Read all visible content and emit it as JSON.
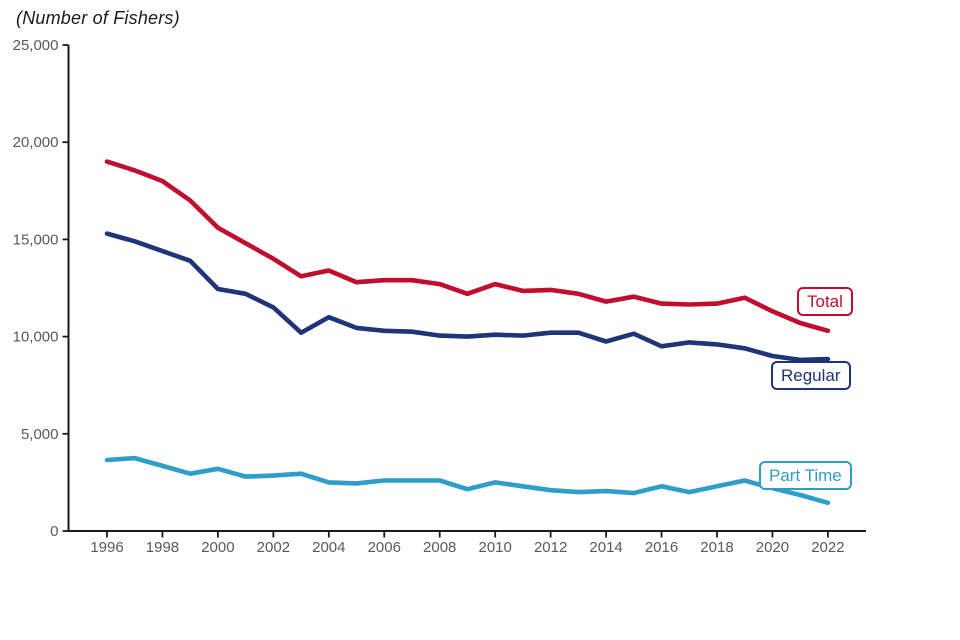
{
  "chart_data": {
    "type": "line",
    "title": "(Number of Fishers)",
    "xlabel": "",
    "ylabel": "(Number of Fishers)",
    "ylim": [
      0,
      25000
    ],
    "grid": false,
    "legend": "inline-end-labels",
    "axis_color": "#1a1a1a",
    "tick_label_color": "#595959",
    "x": [
      1996,
      1997,
      1998,
      1999,
      2000,
      2001,
      2002,
      2003,
      2004,
      2005,
      2006,
      2007,
      2008,
      2009,
      2010,
      2011,
      2012,
      2013,
      2014,
      2015,
      2016,
      2017,
      2018,
      2019,
      2020,
      2021,
      2022
    ],
    "y_ticks": [
      {
        "value": 0,
        "label": "0"
      },
      {
        "value": 5000,
        "label": "5,000"
      },
      {
        "value": 10000,
        "label": "10,000"
      },
      {
        "value": 15000,
        "label": "15,000"
      },
      {
        "value": 20000,
        "label": "20,000"
      },
      {
        "value": 25000,
        "label": "25,000"
      }
    ],
    "x_ticks": [
      {
        "value": 1996,
        "label": "1996"
      },
      {
        "value": 1998,
        "label": "1998"
      },
      {
        "value": 2000,
        "label": "2000"
      },
      {
        "value": 2002,
        "label": "2002"
      },
      {
        "value": 2004,
        "label": "2004"
      },
      {
        "value": 2006,
        "label": "2006"
      },
      {
        "value": 2008,
        "label": "2008"
      },
      {
        "value": 2010,
        "label": "2010"
      },
      {
        "value": 2012,
        "label": "2012"
      },
      {
        "value": 2014,
        "label": "2014"
      },
      {
        "value": 2016,
        "label": "2016"
      },
      {
        "value": 2018,
        "label": "2018"
      },
      {
        "value": 2020,
        "label": "2020"
      },
      {
        "value": 2022,
        "label": "2022"
      }
    ],
    "series": [
      {
        "name": "Total",
        "color": "#c10e2e",
        "values": [
          19000,
          18550,
          18000,
          17000,
          15600,
          14800,
          14000,
          13100,
          13400,
          12800,
          12900,
          12900,
          12700,
          12200,
          12700,
          12350,
          12400,
          12200,
          11800,
          12050,
          11700,
          11650,
          11700,
          12000,
          11300,
          10700,
          10300
        ]
      },
      {
        "name": "Regular",
        "color": "#1f3479",
        "values": [
          15300,
          14900,
          14400,
          13900,
          12450,
          12200,
          11500,
          10200,
          11000,
          10450,
          10300,
          10250,
          10050,
          10000,
          10100,
          10050,
          10200,
          10200,
          9750,
          10150,
          9500,
          9700,
          9600,
          9400,
          9000,
          8800,
          8850
        ]
      },
      {
        "name": "Part Time",
        "color": "#2f9dc9",
        "values": [
          3650,
          3750,
          3350,
          2950,
          3200,
          2800,
          2850,
          2950,
          2500,
          2450,
          2600,
          2600,
          2600,
          2150,
          2500,
          2300,
          2100,
          2000,
          2050,
          1950,
          2300,
          2000,
          2300,
          2600,
          2200,
          1850,
          1450
        ]
      }
    ]
  }
}
